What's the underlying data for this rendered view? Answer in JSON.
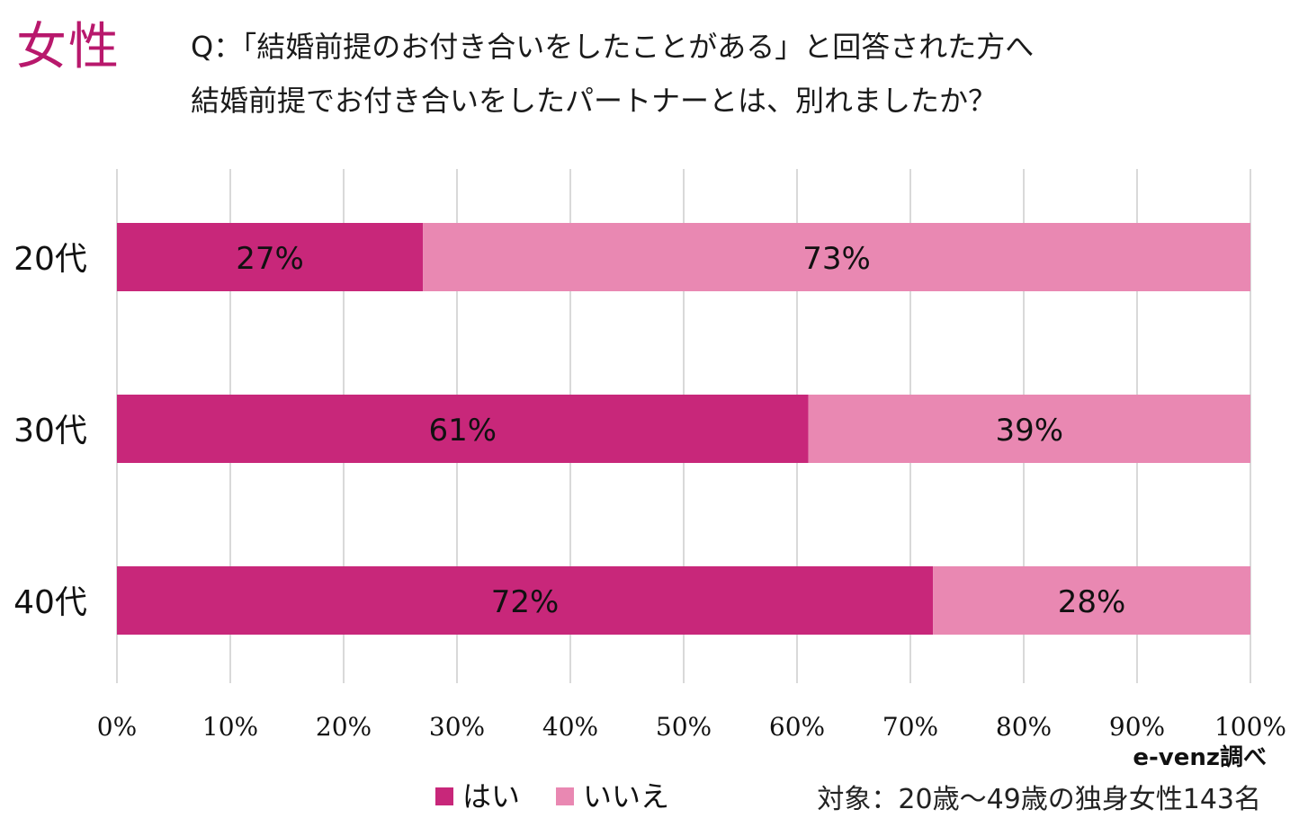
{
  "header": {
    "gender": "女性",
    "question_line1": "Q：「結婚前提のお付き合いをしたことがある」と回答された方へ",
    "question_line2": "結婚前提でお付き合いをしたパートナーとは、別れましたか？"
  },
  "footer": {
    "source": "e-venz調べ",
    "note": "対象：20歳〜49歳の独身女性143名"
  },
  "colors": {
    "yes": "#c8277a",
    "no": "#e988b2",
    "title": "#b8186c",
    "grid": "#d9d9d9"
  },
  "chart_data": {
    "type": "bar",
    "orientation": "horizontal",
    "stacked": true,
    "categories": [
      "20代",
      "30代",
      "40代"
    ],
    "series": [
      {
        "name": "はい",
        "values": [
          27,
          61,
          72
        ],
        "color": "#c8277a"
      },
      {
        "name": "いいえ",
        "values": [
          73,
          39,
          28
        ],
        "color": "#e988b2"
      }
    ],
    "data_labels": [
      [
        "27%",
        "61%",
        "72%"
      ],
      [
        "73%",
        "39%",
        "28%"
      ]
    ],
    "xlim": [
      0,
      100
    ],
    "xticks": [
      "0%",
      "10%",
      "20%",
      "30%",
      "40%",
      "50%",
      "60%",
      "70%",
      "80%",
      "90%",
      "100%"
    ],
    "grid": true,
    "legend": "bottom"
  }
}
